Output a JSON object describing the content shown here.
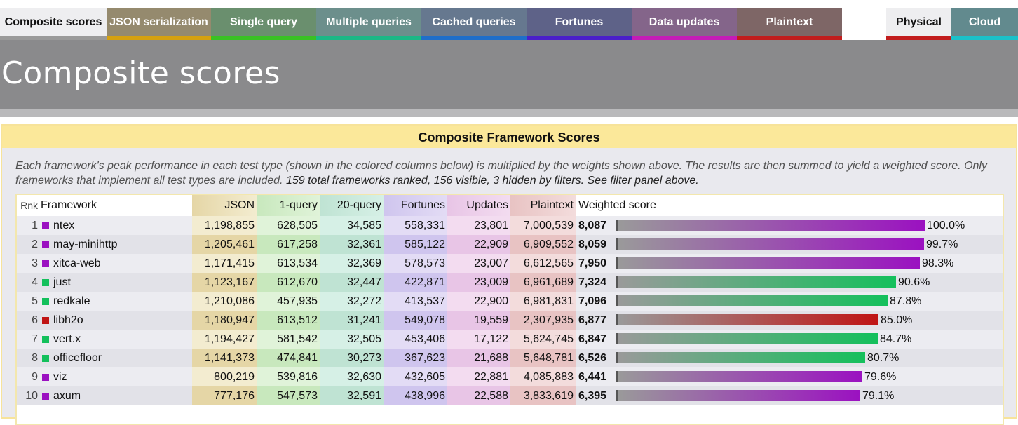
{
  "tabs": [
    {
      "label": "Composite scores",
      "active": true,
      "bg": "#eeeef0",
      "border": "#9a9a9a"
    },
    {
      "label": "JSON serialization",
      "bg": "#958a6e",
      "border": "#d6a10f"
    },
    {
      "label": "Single query",
      "bg": "#6a8f6e",
      "border": "#39c124"
    },
    {
      "label": "Multiple queries",
      "bg": "#6c8f8c",
      "border": "#1bb886"
    },
    {
      "label": "Cached queries",
      "bg": "#66788f",
      "border": "#1f6ec9"
    },
    {
      "label": "Fortunes",
      "bg": "#5e6288",
      "border": "#4a1fc9"
    },
    {
      "label": "Data updates",
      "bg": "#84658a",
      "border": "#c51bb7"
    },
    {
      "label": "Plaintext",
      "bg": "#7e6666",
      "border": "#c21d1d"
    },
    {
      "label": "Physical",
      "active": true,
      "bg": "#eeeef0",
      "border": "#c21d1d"
    },
    {
      "label": "Cloud",
      "bg": "#628a8e",
      "border": "#1bc1c9"
    }
  ],
  "header": {
    "title": "Composite scores"
  },
  "panel": {
    "title": "Composite Framework Scores",
    "description": "Each framework's peak performance in each test type (shown in the colored columns below) is multiplied by the weights shown above. The results are then summed to yield a weighted score. Only frameworks that implement all test types are included.",
    "count_text": "159 total frameworks ranked, 156 visible, 3 hidden by filters. See filter panel above."
  },
  "table": {
    "headers": {
      "rank": "Rnk",
      "framework": "Framework",
      "json": "JSON",
      "q1": "1-query",
      "q20": "20-query",
      "fortunes": "Fortunes",
      "updates": "Updates",
      "plaintext": "Plaintext",
      "score": "Weighted score"
    },
    "rows": [
      {
        "rank": "1",
        "name": "ntex",
        "color": "#9b11c1",
        "json": "1,198,855",
        "q1": "628,505",
        "q20": "34,585",
        "fortunes": "558,331",
        "updates": "23,801",
        "plaintext": "7,000,539",
        "score": "8,087",
        "pct": "100.0%",
        "fraction": 1.0
      },
      {
        "rank": "2",
        "name": "may-minihttp",
        "color": "#9b11c1",
        "json": "1,205,461",
        "q1": "617,258",
        "q20": "32,361",
        "fortunes": "585,122",
        "updates": "22,909",
        "plaintext": "6,909,552",
        "score": "8,059",
        "pct": "99.7%",
        "fraction": 0.997
      },
      {
        "rank": "3",
        "name": "xitca-web",
        "color": "#9b11c1",
        "json": "1,171,415",
        "q1": "613,534",
        "q20": "32,369",
        "fortunes": "578,573",
        "updates": "23,007",
        "plaintext": "6,612,565",
        "score": "7,950",
        "pct": "98.3%",
        "fraction": 0.983
      },
      {
        "rank": "4",
        "name": "just",
        "color": "#14c05c",
        "json": "1,123,167",
        "q1": "612,670",
        "q20": "32,447",
        "fortunes": "422,871",
        "updates": "23,009",
        "plaintext": "6,961,689",
        "score": "7,324",
        "pct": "90.6%",
        "fraction": 0.906
      },
      {
        "rank": "5",
        "name": "redkale",
        "color": "#14c05c",
        "json": "1,210,086",
        "q1": "457,935",
        "q20": "32,272",
        "fortunes": "413,537",
        "updates": "22,900",
        "plaintext": "6,981,831",
        "score": "7,096",
        "pct": "87.8%",
        "fraction": 0.878
      },
      {
        "rank": "6",
        "name": "libh2o",
        "color": "#c01414",
        "json": "1,180,947",
        "q1": "613,512",
        "q20": "31,241",
        "fortunes": "549,078",
        "updates": "19,559",
        "plaintext": "2,307,935",
        "score": "6,877",
        "pct": "85.0%",
        "fraction": 0.85
      },
      {
        "rank": "7",
        "name": "vert.x",
        "color": "#14c05c",
        "json": "1,194,427",
        "q1": "581,542",
        "q20": "32,505",
        "fortunes": "453,406",
        "updates": "17,122",
        "plaintext": "5,624,745",
        "score": "6,847",
        "pct": "84.7%",
        "fraction": 0.847
      },
      {
        "rank": "8",
        "name": "officefloor",
        "color": "#14c05c",
        "json": "1,141,373",
        "q1": "474,841",
        "q20": "30,273",
        "fortunes": "367,623",
        "updates": "21,688",
        "plaintext": "5,648,781",
        "score": "6,526",
        "pct": "80.7%",
        "fraction": 0.807
      },
      {
        "rank": "9",
        "name": "viz",
        "color": "#9b11c1",
        "json": "800,219",
        "q1": "539,816",
        "q20": "32,630",
        "fortunes": "432,605",
        "updates": "22,881",
        "plaintext": "4,085,883",
        "score": "6,441",
        "pct": "79.6%",
        "fraction": 0.796
      },
      {
        "rank": "10",
        "name": "axum",
        "color": "#9b11c1",
        "json": "777,176",
        "q1": "547,573",
        "q20": "32,591",
        "fortunes": "438,996",
        "updates": "22,588",
        "plaintext": "3,833,619",
        "score": "6,395",
        "pct": "79.1%",
        "fraction": 0.791
      }
    ]
  },
  "column_colors": {
    "json": [
      "#f3ecd0",
      "#e5d6a6"
    ],
    "q1": [
      "#e0f3d9",
      "#c8e8bd"
    ],
    "q20": [
      "#d6f0e6",
      "#bfe3d3"
    ],
    "fortunes": [
      "#e3dcf5",
      "#cfc5ee"
    ],
    "updates": [
      "#f3dcf0",
      "#e8c5e6"
    ],
    "plaintext": [
      "#f3dcdc",
      "#e8c3c3"
    ],
    "row_even": "#ececf1",
    "row_odd": "#e2e2e8"
  }
}
